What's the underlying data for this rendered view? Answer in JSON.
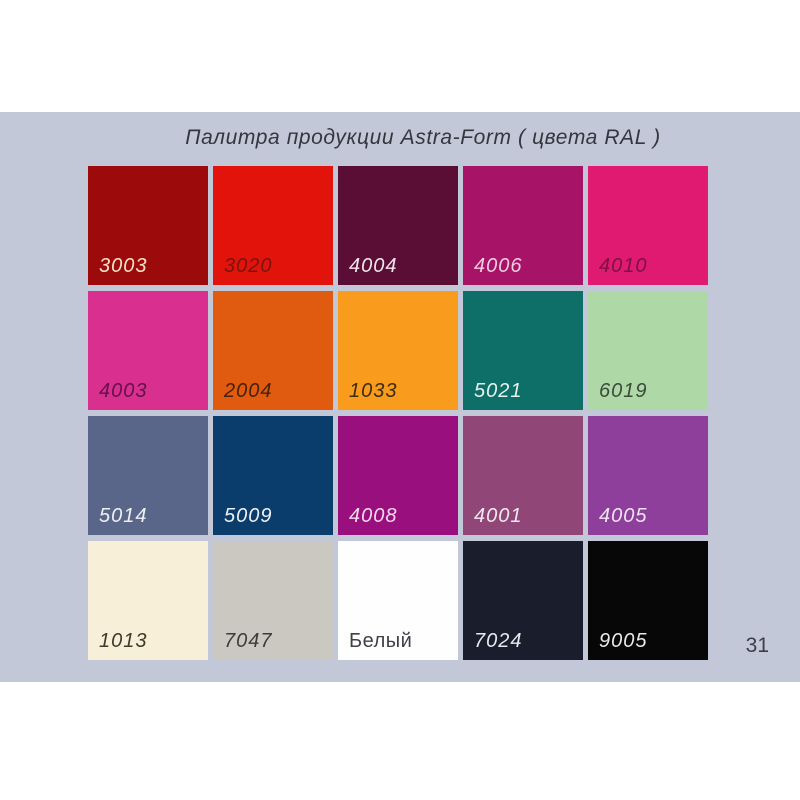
{
  "page": {
    "title": "Палитра продукции Astra-Form ( цвета RAL )",
    "page_number": "31",
    "canvas_background": "#ffffff",
    "slide_background": "#c3c8d8"
  },
  "palette": {
    "swatches": [
      {
        "label": "3003",
        "color": "#9c0a0b",
        "label_color": "#f0e3c9",
        "italic": true
      },
      {
        "label": "3020",
        "color": "#e2130b",
        "label_color": "#77150e",
        "italic": true
      },
      {
        "label": "4004",
        "color": "#5a0e36",
        "label_color": "#f2e6ec",
        "italic": true
      },
      {
        "label": "4006",
        "color": "#a71367",
        "label_color": "#f1cde1",
        "italic": true
      },
      {
        "label": "4010",
        "color": "#df1a70",
        "label_color": "#7c1243",
        "italic": true
      },
      {
        "label": "4003",
        "color": "#d93090",
        "label_color": "#641149",
        "italic": true
      },
      {
        "label": "2004",
        "color": "#e05b10",
        "label_color": "#47210a",
        "italic": true
      },
      {
        "label": "1033",
        "color": "#f99c1e",
        "label_color": "#3d2c10",
        "italic": true
      },
      {
        "label": "5021",
        "color": "#0d6f68",
        "label_color": "#e8f2ef",
        "italic": true
      },
      {
        "label": "6019",
        "color": "#aed9a6",
        "label_color": "#3b4a3c",
        "italic": true
      },
      {
        "label": "5014",
        "color": "#5a6689",
        "label_color": "#eff0f4",
        "italic": true
      },
      {
        "label": "5009",
        "color": "#0a3d6b",
        "label_color": "#edf1f5",
        "italic": true
      },
      {
        "label": "4008",
        "color": "#9a0f7e",
        "label_color": "#f3dbeb",
        "italic": true
      },
      {
        "label": "4001",
        "color": "#904677",
        "label_color": "#f4e9ef",
        "italic": true
      },
      {
        "label": "4005",
        "color": "#8d3f9b",
        "label_color": "#f2e5f4",
        "italic": true
      },
      {
        "label": "1013",
        "color": "#f7efd8",
        "label_color": "#3f3a2d",
        "italic": true
      },
      {
        "label": "7047",
        "color": "#cbc7c1",
        "label_color": "#3e3b36",
        "italic": true
      },
      {
        "label": "Белый",
        "color": "#fefefe",
        "label_color": "#3f4148",
        "italic": false
      },
      {
        "label": "7024",
        "color": "#1a1d2c",
        "label_color": "#e8eaf0",
        "italic": true
      },
      {
        "label": "9005",
        "color": "#070708",
        "label_color": "#e9e9ea",
        "italic": true
      }
    ]
  }
}
